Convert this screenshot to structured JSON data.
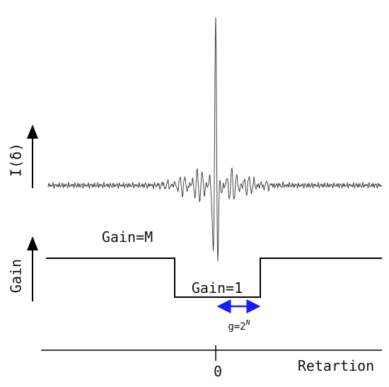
{
  "labels": {
    "intensity": "I(δ)",
    "gain_axis": "Gain",
    "gain_high": "Gain=M",
    "gain_low": "Gain=1",
    "gain_width": {
      "base": "g=2",
      "exponent": "N"
    },
    "origin": "0",
    "x_axis": "Retartion"
  }
}
